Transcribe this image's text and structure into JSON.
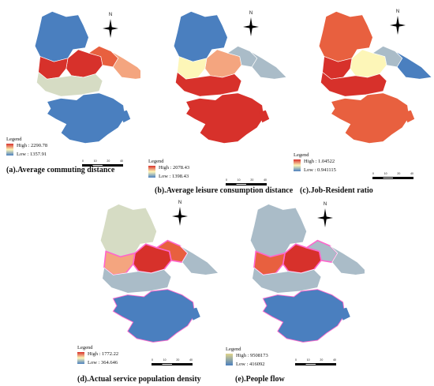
{
  "colors": {
    "red": "#d7312b",
    "orange_red": "#e8603f",
    "salmon": "#f4a57f",
    "pale_yellow": "#fdf6b8",
    "gray_green": "#d6dcc4",
    "gray_blue": "#aabcc8",
    "blue": "#4a7fbf",
    "magenta_halo": "#ff66cc"
  },
  "panels": [
    {
      "id": "a",
      "caption": "(a).Average commuting distance",
      "legend": {
        "title": "Legend",
        "high": "High : 2290.78",
        "low": "Low : 1357.91"
      },
      "scale_ticks": [
        "0",
        "10",
        "20",
        "40"
      ]
    },
    {
      "id": "b",
      "caption": "(b).Average leisure consumption distance",
      "legend": {
        "title": "Legend",
        "high": "High : 2078.43",
        "low": "Low : 1398.43"
      },
      "scale_ticks": [
        "0",
        "10",
        "20",
        "40"
      ]
    },
    {
      "id": "c",
      "caption": "(c).Job-Resident ratio",
      "legend": {
        "title": "Legend",
        "high": "High : 1.04522",
        "low": "Low : 0.941115"
      },
      "scale_ticks": [
        "0",
        "10",
        "20",
        "40"
      ]
    },
    {
      "id": "d",
      "caption": "(d).Actual service population density",
      "legend": {
        "title": "Legend",
        "high": "High : 1772.22",
        "low": "Low : 364.646"
      },
      "scale_ticks": [
        "0",
        "10",
        "20",
        "40"
      ]
    },
    {
      "id": "e",
      "caption": "(e).People flow",
      "legend": {
        "title": "Legend",
        "high": "High : 9508173",
        "low": "Low : 416092"
      },
      "scale_ticks": [
        "0",
        "10",
        "20",
        "40"
      ]
    }
  ],
  "north_label": "N"
}
